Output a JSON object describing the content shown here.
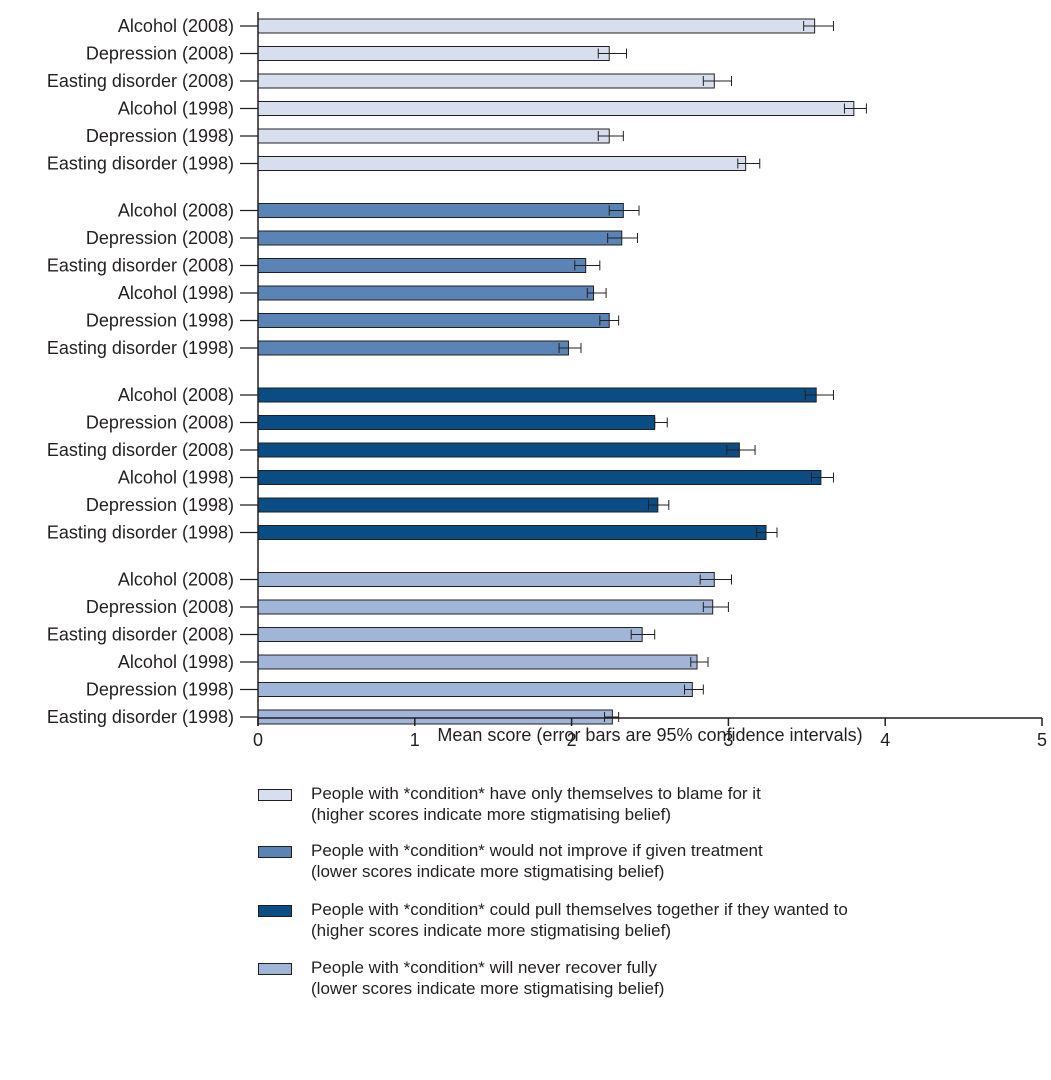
{
  "chart_data": {
    "type": "bar",
    "orientation": "horizontal",
    "xlabel": "Mean score (error bars are 95% confidence intervals)",
    "xlim": [
      0,
      5
    ],
    "xticks": [
      "0",
      "1",
      "2",
      "3",
      "4",
      "5"
    ],
    "grid": false,
    "legend_position": "bottom",
    "groups": [
      {
        "color": "#d7dfef",
        "legend": [
          "People with *condition* have only themselves to blame for it",
          "(higher scores indicate more stigmatising belief)"
        ],
        "bars": [
          {
            "label": "Alcohol (2008)",
            "value": 3.55,
            "ci_low": 3.48,
            "ci_high": 3.67
          },
          {
            "label": "Depression (2008)",
            "value": 2.24,
            "ci_low": 2.17,
            "ci_high": 2.35
          },
          {
            "label": "Easting disorder (2008)",
            "value": 2.91,
            "ci_low": 2.84,
            "ci_high": 3.02
          },
          {
            "label": "Alcohol (1998)",
            "value": 3.8,
            "ci_low": 3.74,
            "ci_high": 3.88
          },
          {
            "label": "Depression (1998)",
            "value": 2.24,
            "ci_low": 2.17,
            "ci_high": 2.33
          },
          {
            "label": "Easting disorder (1998)",
            "value": 3.11,
            "ci_low": 3.06,
            "ci_high": 3.2
          }
        ]
      },
      {
        "color": "#5a83b6",
        "legend": [
          "People with *condition* would not improve if given treatment",
          "(lower scores indicate more stigmatising belief)"
        ],
        "bars": [
          {
            "label": "Alcohol (2008)",
            "value": 2.33,
            "ci_low": 2.24,
            "ci_high": 2.43
          },
          {
            "label": "Depression (2008)",
            "value": 2.32,
            "ci_low": 2.23,
            "ci_high": 2.42
          },
          {
            "label": "Easting disorder (2008)",
            "value": 2.09,
            "ci_low": 2.02,
            "ci_high": 2.18
          },
          {
            "label": "Alcohol (1998)",
            "value": 2.14,
            "ci_low": 2.1,
            "ci_high": 2.22
          },
          {
            "label": "Depression (1998)",
            "value": 2.24,
            "ci_low": 2.18,
            "ci_high": 2.3
          },
          {
            "label": "Easting disorder (1998)",
            "value": 1.98,
            "ci_low": 1.92,
            "ci_high": 2.06
          }
        ]
      },
      {
        "color": "#0a4d85",
        "legend": [
          "People with *condition* could pull themselves together if they wanted to",
          "(higher scores indicate more stigmatising belief)"
        ],
        "bars": [
          {
            "label": "Alcohol (2008)",
            "value": 3.56,
            "ci_low": 3.49,
            "ci_high": 3.67
          },
          {
            "label": "Depression (2008)",
            "value": 2.53,
            "ci_low": 2.53,
            "ci_high": 2.61
          },
          {
            "label": "Easting disorder (2008)",
            "value": 3.07,
            "ci_low": 2.99,
            "ci_high": 3.17
          },
          {
            "label": "Alcohol (1998)",
            "value": 3.59,
            "ci_low": 3.53,
            "ci_high": 3.67
          },
          {
            "label": "Depression (1998)",
            "value": 2.55,
            "ci_low": 2.49,
            "ci_high": 2.62
          },
          {
            "label": "Easting disorder (1998)",
            "value": 3.24,
            "ci_low": 3.18,
            "ci_high": 3.31
          }
        ]
      },
      {
        "color": "#a1b5d8",
        "legend": [
          "People with *condition* will never recover fully",
          "(lower scores indicate more stigmatising belief)"
        ],
        "bars": [
          {
            "label": "Alcohol (2008)",
            "value": 2.91,
            "ci_low": 2.82,
            "ci_high": 3.02
          },
          {
            "label": "Depression (2008)",
            "value": 2.9,
            "ci_low": 2.84,
            "ci_high": 3.0
          },
          {
            "label": "Easting disorder (2008)",
            "value": 2.45,
            "ci_low": 2.38,
            "ci_high": 2.53
          },
          {
            "label": "Alcohol (1998)",
            "value": 2.8,
            "ci_low": 2.76,
            "ci_high": 2.87
          },
          {
            "label": "Depression (1998)",
            "value": 2.77,
            "ci_low": 2.72,
            "ci_high": 2.84
          },
          {
            "label": "Easting disorder (1998)",
            "value": 2.26,
            "ci_low": 2.21,
            "ci_high": 2.3
          }
        ]
      }
    ]
  }
}
